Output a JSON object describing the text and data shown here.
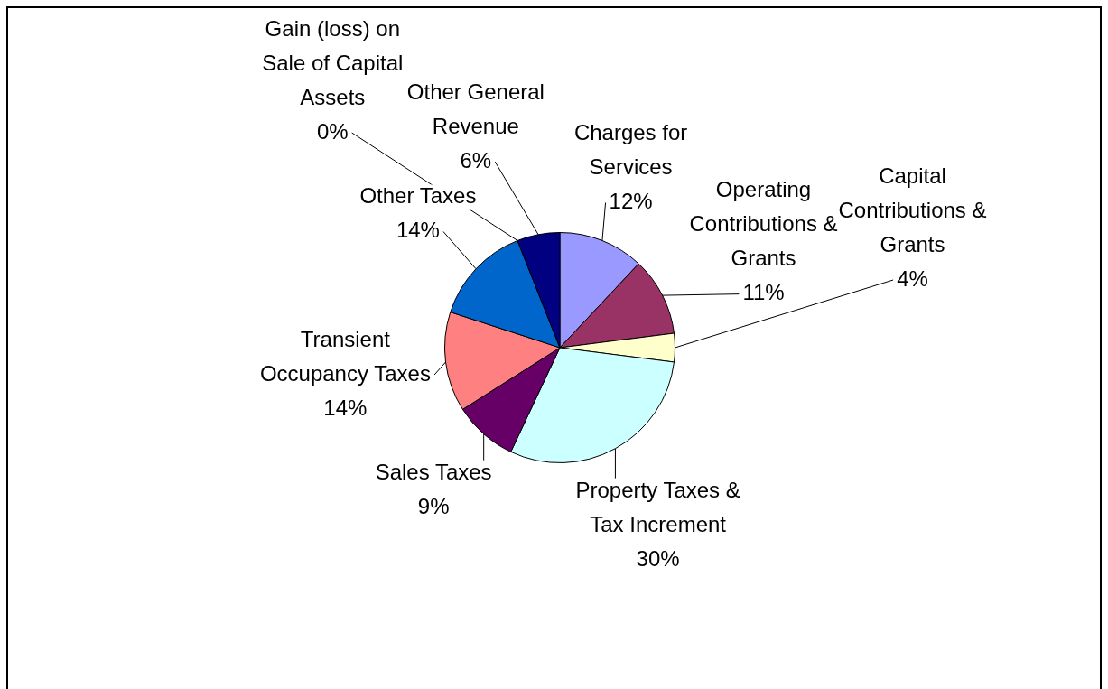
{
  "chart_data": {
    "type": "pie",
    "categories": [
      "Charges for Services",
      "Operating Contributions & Grants",
      "Capital Contributions & Grants",
      "Property Taxes & Tax Increment",
      "Sales Taxes",
      "Transient Occupancy Taxes",
      "Other Taxes",
      "Gain (loss) on Sale of Capital Assets",
      "Other General Revenue"
    ],
    "values": [
      12,
      11,
      4,
      30,
      9,
      14,
      14,
      0,
      6
    ],
    "value_labels": [
      "12%",
      "11%",
      "4%",
      "30%",
      "9%",
      "14%",
      "14%",
      "0%",
      "6%"
    ],
    "colors": [
      "#9999ff",
      "#993366",
      "#ffffcc",
      "#ccffff",
      "#660066",
      "#ff8080",
      "#0066cc",
      "#ccccff",
      "#000080"
    ]
  }
}
